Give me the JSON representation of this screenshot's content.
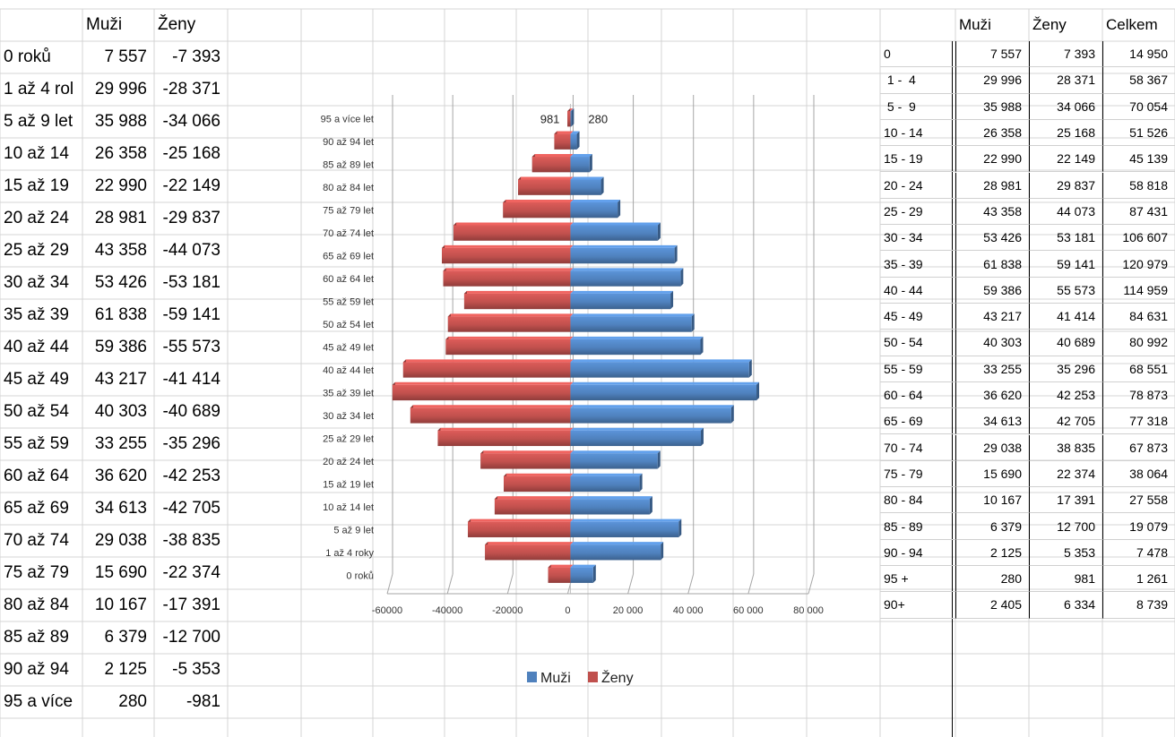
{
  "left_table": {
    "headers": [
      "",
      "Muži",
      "Ženy"
    ],
    "rows": [
      [
        "0 roků",
        "7 557",
        "-7 393"
      ],
      [
        "1 až 4 rol",
        "29 996",
        "-28 371"
      ],
      [
        "5 až 9 let",
        "35 988",
        "-34 066"
      ],
      [
        "10 až 14",
        "26 358",
        "-25 168"
      ],
      [
        "15 až 19",
        "22 990",
        "-22 149"
      ],
      [
        "20 až 24",
        "28 981",
        "-29 837"
      ],
      [
        "25 až 29",
        "43 358",
        "-44 073"
      ],
      [
        "30 až 34",
        "53 426",
        "-53 181"
      ],
      [
        "35 až 39",
        "61 838",
        "-59 141"
      ],
      [
        "40 až 44",
        "59 386",
        "-55 573"
      ],
      [
        "45 až 49",
        "43 217",
        "-41 414"
      ],
      [
        "50 až 54",
        "40 303",
        "-40 689"
      ],
      [
        "55 až 59",
        "33 255",
        "-35 296"
      ],
      [
        "60 až 64",
        "36 620",
        "-42 253"
      ],
      [
        "65 až 69",
        "34 613",
        "-42 705"
      ],
      [
        "70 až 74",
        "29 038",
        "-38 835"
      ],
      [
        "75 až 79",
        "15 690",
        "-22 374"
      ],
      [
        "80 až 84",
        "10 167",
        "-17 391"
      ],
      [
        "85 až 89",
        "6 379",
        "-12 700"
      ],
      [
        "90 až 94",
        "2 125",
        "-5 353"
      ],
      [
        "95 a více",
        "280",
        "-981"
      ]
    ]
  },
  "right_table": {
    "headers": [
      "",
      "Muži",
      "Ženy",
      "Celkem"
    ],
    "rows": [
      [
        "0",
        "7 557",
        "7 393",
        "14 950"
      ],
      [
        " 1 -  4",
        "29 996",
        "28 371",
        "58 367"
      ],
      [
        " 5 -  9",
        "35 988",
        "34 066",
        "70 054"
      ],
      [
        "10 - 14",
        "26 358",
        "25 168",
        "51 526"
      ],
      [
        "15 - 19",
        "22 990",
        "22 149",
        "45 139"
      ],
      [
        "20 - 24",
        "28 981",
        "29 837",
        "58 818"
      ],
      [
        "25 - 29",
        "43 358",
        "44 073",
        "87 431"
      ],
      [
        "30 - 34",
        "53 426",
        "53 181",
        "106 607"
      ],
      [
        "35 - 39",
        "61 838",
        "59 141",
        "120 979"
      ],
      [
        "40 - 44",
        "59 386",
        "55 573",
        "114 959"
      ],
      [
        "45 - 49",
        "43 217",
        "41 414",
        "84 631"
      ],
      [
        "50 - 54",
        "40 303",
        "40 689",
        "80 992"
      ],
      [
        "55 - 59",
        "33 255",
        "35 296",
        "68 551"
      ],
      [
        "60 - 64",
        "36 620",
        "42 253",
        "78 873"
      ],
      [
        "65 - 69",
        "34 613",
        "42 705",
        "77 318"
      ],
      [
        "70 - 74",
        "29 038",
        "38 835",
        "67 873"
      ],
      [
        "75 - 79",
        "15 690",
        "22 374",
        "38 064"
      ],
      [
        "80 - 84",
        "10 167",
        "17 391",
        "27 558"
      ],
      [
        "85 - 89",
        "6 379",
        "12 700",
        "19 079"
      ],
      [
        "90 - 94",
        "2 125",
        "5 353",
        "7 478"
      ],
      [
        "95 +",
        "280",
        "981",
        "1 261"
      ],
      [
        "90+",
        "2 405",
        "6 334",
        "8 739"
      ]
    ]
  },
  "chart_data": {
    "type": "bar",
    "orientation": "horizontal",
    "categories": [
      "95 a více let",
      "90 až 94 let",
      "85 až 89 let",
      "80 až 84 let",
      "75 až 79 let",
      "70 až 74 let",
      "65 až 69 let",
      "60 až 64 let",
      "55 až 59 let",
      "50 až 54 let",
      "45 až 49 let",
      "40 až 44 let",
      "35 až 39 let",
      "30 až 34 let",
      "25 až 29 let",
      "20 až 24 let",
      "15 až 19 let",
      "10 až 14 let",
      "5 až 9 let",
      "1 až 4 roky",
      "0 roků"
    ],
    "series": [
      {
        "name": "Muži",
        "color": "#4f81bd",
        "values": [
          280,
          2125,
          6379,
          10167,
          15690,
          29038,
          34613,
          36620,
          33255,
          40303,
          43217,
          59386,
          61838,
          53426,
          43358,
          28981,
          22990,
          26358,
          35988,
          29996,
          7557
        ]
      },
      {
        "name": "Ženy",
        "color": "#c0504d",
        "values": [
          -981,
          -5353,
          -12700,
          -17391,
          -22374,
          -38835,
          -42705,
          -42253,
          -35296,
          -40689,
          -41414,
          -55573,
          -59141,
          -53181,
          -44073,
          -29837,
          -22149,
          -25168,
          -34066,
          -28371,
          -7393
        ]
      }
    ],
    "xlim": [
      -60000,
      80000
    ],
    "xticks": [
      -60000,
      -40000,
      -20000,
      0,
      20000,
      40000,
      60000,
      80000
    ],
    "xtick_labels": [
      "-60000",
      "-40000",
      "-20000",
      "0",
      "20 000",
      "40 000",
      "60 000",
      "80 000"
    ],
    "data_labels": {
      "female_top": "981",
      "male_top": "280"
    },
    "legend": [
      "Muži",
      "Ženy"
    ],
    "legend_position": "bottom",
    "grid": true
  }
}
